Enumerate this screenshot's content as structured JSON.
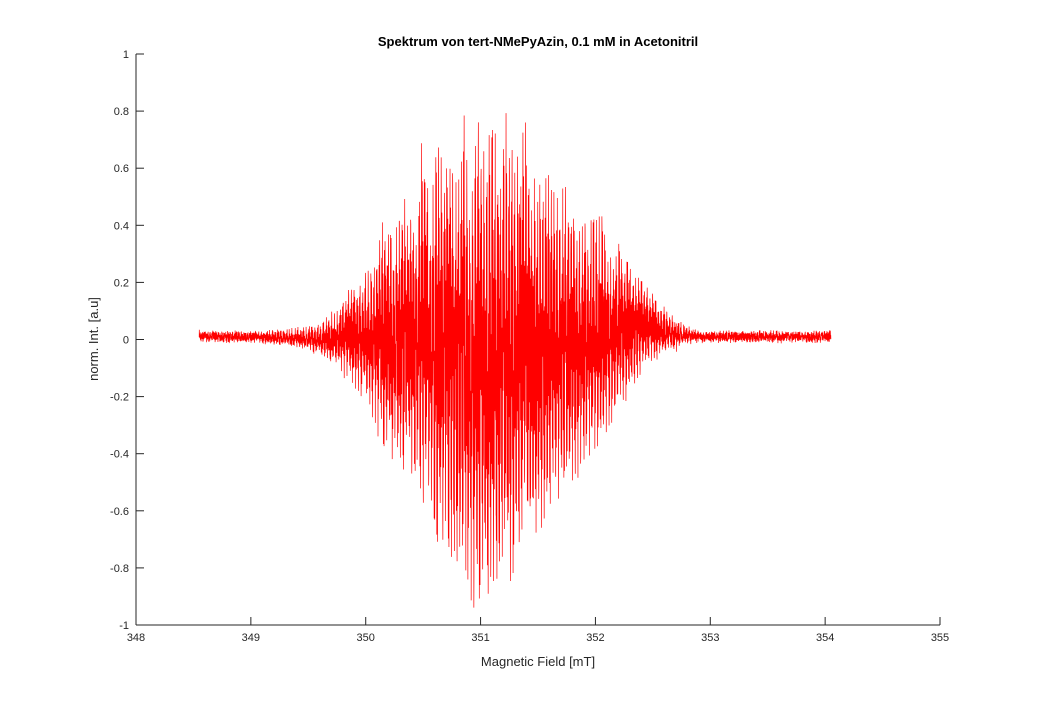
{
  "chart_data": {
    "type": "line",
    "title": "Spektrum von tert-NMePyAzin, 0.1 mM in Acetonitril",
    "xlabel": "Magnetic Field [mT]",
    "ylabel": "norm. Int. [a.u]",
    "xlim": [
      348,
      355
    ],
    "ylim": [
      -1,
      1
    ],
    "xticks": [
      348,
      349,
      350,
      351,
      352,
      353,
      354,
      355
    ],
    "xtick_labels": [
      "348",
      "349",
      "350",
      "351",
      "352",
      "353",
      "354",
      "355"
    ],
    "yticks": [
      -1,
      -0.8,
      -0.6,
      -0.4,
      -0.2,
      0,
      0.2,
      0.4,
      0.6,
      0.8,
      1
    ],
    "ytick_labels": [
      "-1",
      "-0.8",
      "-0.6",
      "-0.4",
      "-0.2",
      "0",
      "0.2",
      "0.4",
      "0.6",
      "0.8",
      "1"
    ],
    "grid": false,
    "line_color": "#ff0000",
    "series": [
      {
        "x": [
          348.55,
          349.0,
          349.4,
          349.6,
          349.75,
          349.85,
          349.95,
          350.05,
          350.15,
          350.25,
          350.35,
          350.45,
          350.5,
          350.55,
          350.62,
          350.7,
          350.78,
          350.85,
          350.92,
          351.0,
          351.05,
          351.1,
          351.15,
          351.22,
          351.3,
          351.38,
          351.45,
          351.52,
          351.6,
          351.68,
          351.75,
          351.82,
          351.9,
          351.97,
          352.05,
          352.12,
          352.2,
          352.3,
          352.4,
          352.5,
          352.6,
          352.75,
          352.9,
          353.1,
          353.5,
          354.05
        ],
        "y": [
          0.02,
          0.02,
          0.03,
          0.05,
          0.1,
          0.18,
          0.2,
          0.27,
          0.44,
          0.38,
          0.5,
          0.42,
          0.77,
          0.5,
          0.65,
          0.72,
          0.55,
          0.82,
          0.55,
          0.84,
          0.6,
          0.83,
          0.65,
          0.81,
          0.6,
          0.82,
          0.55,
          0.57,
          0.56,
          0.5,
          0.55,
          0.45,
          0.43,
          0.42,
          0.44,
          0.3,
          0.35,
          0.27,
          0.22,
          0.16,
          0.1,
          0.05,
          0.02,
          0.02,
          0.02,
          0.02
        ],
        "y_min": [
          0.0,
          0.0,
          -0.02,
          -0.05,
          -0.1,
          -0.15,
          -0.2,
          -0.26,
          -0.38,
          -0.42,
          -0.45,
          -0.5,
          -0.56,
          -0.55,
          -0.72,
          -0.7,
          -0.8,
          -0.75,
          -0.95,
          -0.93,
          -0.9,
          -1.0,
          -0.9,
          -0.85,
          -0.82,
          -0.7,
          -0.68,
          -0.66,
          -0.6,
          -0.55,
          -0.52,
          -0.5,
          -0.45,
          -0.4,
          -0.35,
          -0.3,
          -0.25,
          -0.2,
          -0.12,
          -0.08,
          -0.05,
          -0.02,
          0.0,
          0.0,
          0.0,
          0.0
        ]
      }
    ]
  }
}
